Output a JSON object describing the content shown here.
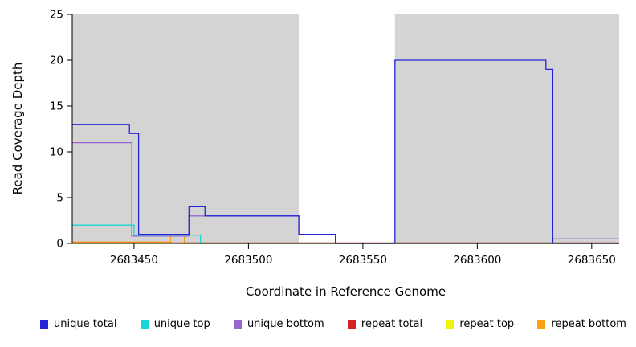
{
  "chart_data": {
    "type": "line",
    "subtype": "step",
    "title": "",
    "xlabel": "Coordinate in Reference Genome",
    "ylabel": "Read Coverage Depth",
    "xlim": [
      2683423,
      2683662
    ],
    "ylim": [
      0,
      25
    ],
    "xticks": [
      2683450,
      2683500,
      2683550,
      2683600,
      2683650
    ],
    "yticks": [
      0,
      5,
      10,
      15,
      20,
      25
    ],
    "grid": false,
    "legend_position": "bottom",
    "shade_color": "#d4d4d4",
    "shaded_regions": [
      {
        "from": 2683423,
        "to": 2683522
      },
      {
        "from": 2683564,
        "to": 2683662
      }
    ],
    "series": [
      {
        "name": "unique total",
        "color": "#2424d8",
        "segments": [
          [
            2683423,
            2683448,
            13
          ],
          [
            2683448,
            2683452,
            12
          ],
          [
            2683452,
            2683474,
            1
          ],
          [
            2683474,
            2683481,
            4
          ],
          [
            2683481,
            2683522,
            3
          ],
          [
            2683522,
            2683538,
            1
          ],
          [
            2683538,
            2683564,
            0
          ],
          [
            2683564,
            2683630,
            20
          ],
          [
            2683630,
            2683633,
            19
          ],
          [
            2683633,
            2683662,
            0
          ]
        ]
      },
      {
        "name": "unique top",
        "color": "#17d6d6",
        "segments": [
          [
            2683423,
            2683450,
            2
          ],
          [
            2683450,
            2683479,
            0.9
          ],
          [
            2683479,
            2683662,
            0
          ]
        ]
      },
      {
        "name": "unique bottom",
        "color": "#9a63d3",
        "segments": [
          [
            2683423,
            2683449,
            11
          ],
          [
            2683449,
            2683474,
            0.8
          ],
          [
            2683474,
            2683522,
            3
          ],
          [
            2683522,
            2683538,
            1
          ],
          [
            2683538,
            2683633,
            0
          ],
          [
            2683633,
            2683662,
            0.5
          ]
        ]
      },
      {
        "name": "repeat total",
        "color": "#d82222",
        "segments": [
          [
            2683423,
            2683662,
            0.05
          ]
        ]
      },
      {
        "name": "repeat top",
        "color": "#f2f20c",
        "segments": [
          [
            2683423,
            2683662,
            0
          ]
        ]
      },
      {
        "name": "repeat bottom",
        "color": "#ffa013",
        "segments": [
          [
            2683423,
            2683466,
            0.15
          ],
          [
            2683466,
            2683472,
            0.9
          ],
          [
            2683472,
            2683662,
            0
          ]
        ]
      }
    ]
  }
}
